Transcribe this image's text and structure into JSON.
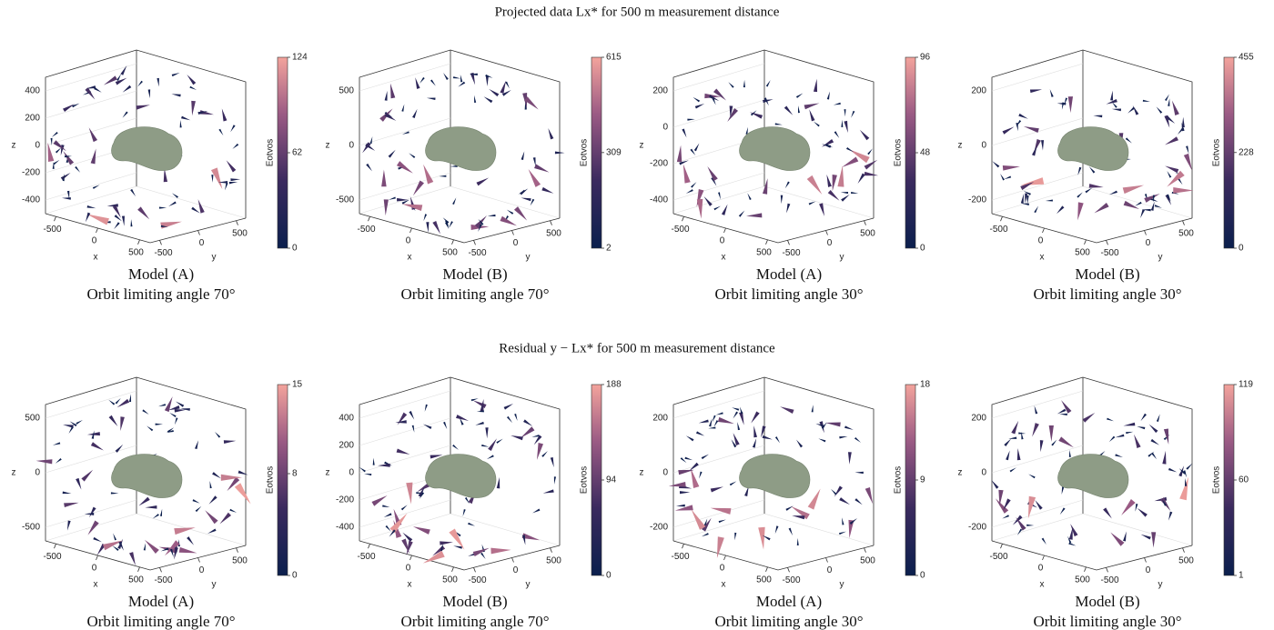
{
  "figure": {
    "axis_labels": {
      "x": "x",
      "y": "y",
      "z": "z"
    },
    "colorbar_label": "Eotvos",
    "rows": [
      {
        "title": "Projected data Lx* for 500 m measurement distance",
        "panels": [
          {
            "model": "Model (A)",
            "angle": "Orbit limiting angle 70°",
            "zticks": [
              400,
              200,
              0,
              -200,
              -400
            ],
            "xticks": [
              -500,
              0,
              500
            ],
            "yticks": [
              -500,
              0,
              500
            ],
            "cbar_ticks": [
              0,
              62,
              124
            ]
          },
          {
            "model": "Model (B)",
            "angle": "Orbit limiting angle 70°",
            "zticks": [
              500,
              0,
              -500
            ],
            "xticks": [
              -500,
              0,
              500
            ],
            "yticks": [
              -500,
              0,
              500
            ],
            "cbar_ticks": [
              2,
              309,
              615
            ]
          },
          {
            "model": "Model (A)",
            "angle": "Orbit limiting angle 30°",
            "zticks": [
              200,
              0,
              -200,
              -400
            ],
            "xticks": [
              -500,
              0,
              500
            ],
            "yticks": [
              -500,
              0,
              500
            ],
            "cbar_ticks": [
              0,
              48,
              96
            ]
          },
          {
            "model": "Model (B)",
            "angle": "Orbit limiting angle 30°",
            "zticks": [
              200,
              0,
              -200
            ],
            "xticks": [
              -500,
              0,
              500
            ],
            "yticks": [
              -500,
              0,
              500
            ],
            "cbar_ticks": [
              0,
              228,
              455
            ]
          }
        ]
      },
      {
        "title": "Residual y − Lx* for 500 m measurement distance",
        "panels": [
          {
            "model": "Model (A)",
            "angle": "Orbit limiting angle 70°",
            "zticks": [
              500,
              0,
              -500
            ],
            "xticks": [
              -500,
              0,
              500
            ],
            "yticks": [
              -500,
              0,
              500
            ],
            "cbar_ticks": [
              0,
              8,
              15
            ]
          },
          {
            "model": "Model (B)",
            "angle": "Orbit limiting angle 70°",
            "zticks": [
              400,
              200,
              0,
              -200,
              -400
            ],
            "xticks": [
              -500,
              0,
              500
            ],
            "yticks": [
              -500,
              0,
              500
            ],
            "cbar_ticks": [
              0,
              94,
              188
            ]
          },
          {
            "model": "Model (A)",
            "angle": "Orbit limiting angle 30°",
            "zticks": [
              200,
              0,
              -200
            ],
            "xticks": [
              -500,
              0,
              500
            ],
            "yticks": [
              -500,
              0,
              500
            ],
            "cbar_ticks": [
              0,
              9,
              18
            ]
          },
          {
            "model": "Model (B)",
            "angle": "Orbit limiting angle 30°",
            "zticks": [
              200,
              0,
              -200
            ],
            "xticks": [
              -500,
              0,
              500
            ],
            "yticks": [
              -500,
              0,
              500
            ],
            "cbar_ticks": [
              1,
              60,
              119
            ]
          }
        ]
      }
    ]
  }
}
